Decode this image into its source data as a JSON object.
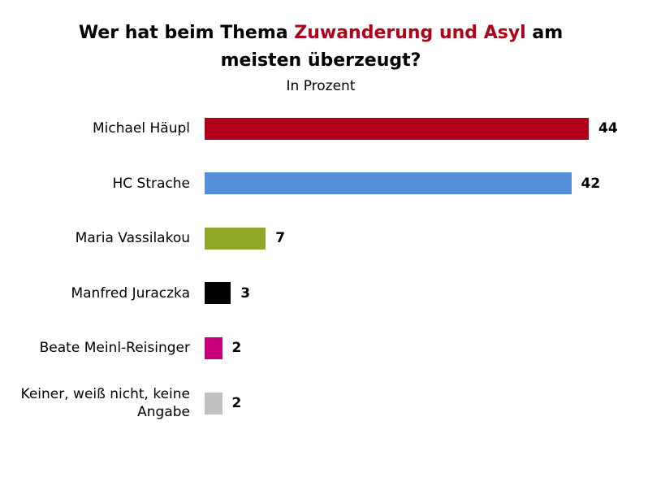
{
  "chart_data": {
    "type": "bar",
    "orientation": "horizontal",
    "title": [
      "Wer hat beim Thema",
      "Zuwanderung und Asyl",
      "am meisten überzeugt?"
    ],
    "title_highlight_color": "#b0001a",
    "subtitle": "In Prozent",
    "categories": [
      "Michael Häupl",
      "HC Strache",
      "Maria Vassilakou",
      "Manfred Juraczka",
      "Beate Meinl-Reisinger",
      "Keiner, weiß nicht, keine Angabe"
    ],
    "values": [
      44,
      42,
      7,
      3,
      2,
      2
    ],
    "colors": [
      "#b0001a",
      "#5590dc",
      "#8fa82a",
      "#000000",
      "#c8007a",
      "#c0c0c0"
    ]
  }
}
